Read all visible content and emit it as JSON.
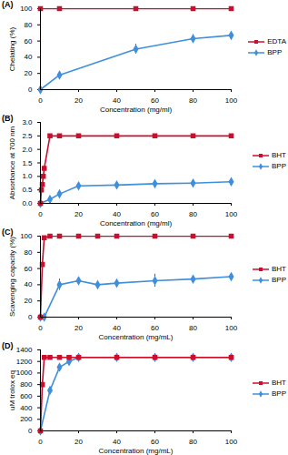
{
  "chart_data": [
    {
      "type": "line",
      "title": "(A)",
      "x_label": "Concentration (mg/ml)",
      "y_label": "Chelating (%)",
      "x": [
        0,
        10,
        50,
        80,
        100
      ],
      "xlim": [
        0,
        100
      ],
      "xticks": [
        0,
        20,
        40,
        60,
        80,
        100
      ],
      "ylim": [
        0,
        100
      ],
      "yticks": [
        0,
        20,
        40,
        60,
        80,
        100
      ],
      "legend": "right",
      "series": [
        {
          "name": "EDTA",
          "color": "#c8102e",
          "marker": "square",
          "values": [
            100,
            100,
            100,
            100,
            100
          ]
        },
        {
          "name": "BPP",
          "color": "#3f8fdc",
          "marker": "diamond",
          "values": [
            0,
            18,
            50,
            63,
            67
          ],
          "errors": [
            0,
            2,
            6,
            5,
            3
          ]
        }
      ]
    },
    {
      "type": "line",
      "title": "(B)",
      "x_label": "Concentration (mg/ml)",
      "y_label": "Absorbance at 700 nm",
      "x": [
        0,
        0.5,
        1,
        1.5,
        2,
        5,
        10,
        20,
        40,
        60,
        80,
        100
      ],
      "xlim": [
        0,
        100
      ],
      "xticks": [
        0,
        20,
        40,
        60,
        80,
        100
      ],
      "ylim": [
        0,
        3
      ],
      "yticks": [
        {
          "value": 0,
          "label": "0.0"
        },
        {
          "value": 0.5,
          "label": "0.5"
        },
        {
          "value": 1,
          "label": "1.0"
        },
        {
          "value": 1.5,
          "label": "1.5"
        },
        {
          "value": 2,
          "label": "2.0"
        },
        {
          "value": 2.5,
          "label": "2.5"
        },
        {
          "value": 3,
          "label": "3.0"
        }
      ],
      "legend": "right",
      "series": [
        {
          "name": "BHT",
          "color": "#c8102e",
          "marker": "square",
          "values": [
            0,
            0.5,
            0.7,
            1.0,
            1.3,
            2.5,
            2.5,
            2.5,
            2.5,
            2.5,
            2.5,
            2.5
          ]
        },
        {
          "name": "BPP",
          "color": "#3f8fdc",
          "marker": "diamond",
          "values": [
            0,
            null,
            null,
            null,
            null,
            0.15,
            0.35,
            0.65,
            0.68,
            0.73,
            0.75,
            0.8
          ]
        }
      ]
    },
    {
      "type": "line",
      "title": "(C)",
      "x_label": "Concentration (mg/mL)",
      "y_label": "Scavenging capacity (%)",
      "x": [
        0,
        1,
        2,
        5,
        10,
        20,
        30,
        40,
        60,
        80,
        100
      ],
      "xlim": [
        0,
        100
      ],
      "xticks": [
        0,
        20,
        40,
        60,
        80,
        100
      ],
      "ylim": [
        0,
        100
      ],
      "yticks": [
        0,
        20,
        40,
        60,
        80,
        100
      ],
      "legend": "right",
      "series": [
        {
          "name": "BHT",
          "color": "#c8102e",
          "marker": "square",
          "values": [
            0,
            65,
            98,
            100,
            100,
            100,
            100,
            100,
            100,
            100,
            100
          ]
        },
        {
          "name": "BPP",
          "color": "#3f8fdc",
          "marker": "diamond",
          "values": [
            0,
            null,
            0,
            null,
            40,
            45,
            40,
            42,
            45,
            47,
            50
          ],
          "errors": [
            0,
            null,
            0,
            null,
            7,
            3,
            2,
            2,
            8,
            3,
            3
          ]
        }
      ]
    },
    {
      "type": "line",
      "title": "(D)",
      "x_label": "Concentration (mg/mL)",
      "y_label": "uM trolox eq",
      "x": [
        0,
        1,
        2,
        5,
        10,
        15,
        20,
        40,
        60,
        80,
        100
      ],
      "xlim": [
        0,
        100
      ],
      "xticks": [
        0,
        20,
        40,
        60,
        80,
        100
      ],
      "ylim": [
        0,
        1400
      ],
      "yticks": [
        0,
        200,
        400,
        600,
        800,
        1000,
        1200,
        1400
      ],
      "legend": "right",
      "series": [
        {
          "name": "BHT",
          "color": "#c8102e",
          "marker": "square",
          "values": [
            0,
            800,
            1270,
            1270,
            1270,
            1270,
            1270,
            1270,
            1270,
            1270,
            1270
          ]
        },
        {
          "name": "BPP",
          "color": "#3f8fdc",
          "marker": "diamond",
          "values": [
            0,
            null,
            null,
            700,
            1100,
            1200,
            1270,
            1270,
            1270,
            1270,
            1270
          ]
        }
      ]
    }
  ]
}
